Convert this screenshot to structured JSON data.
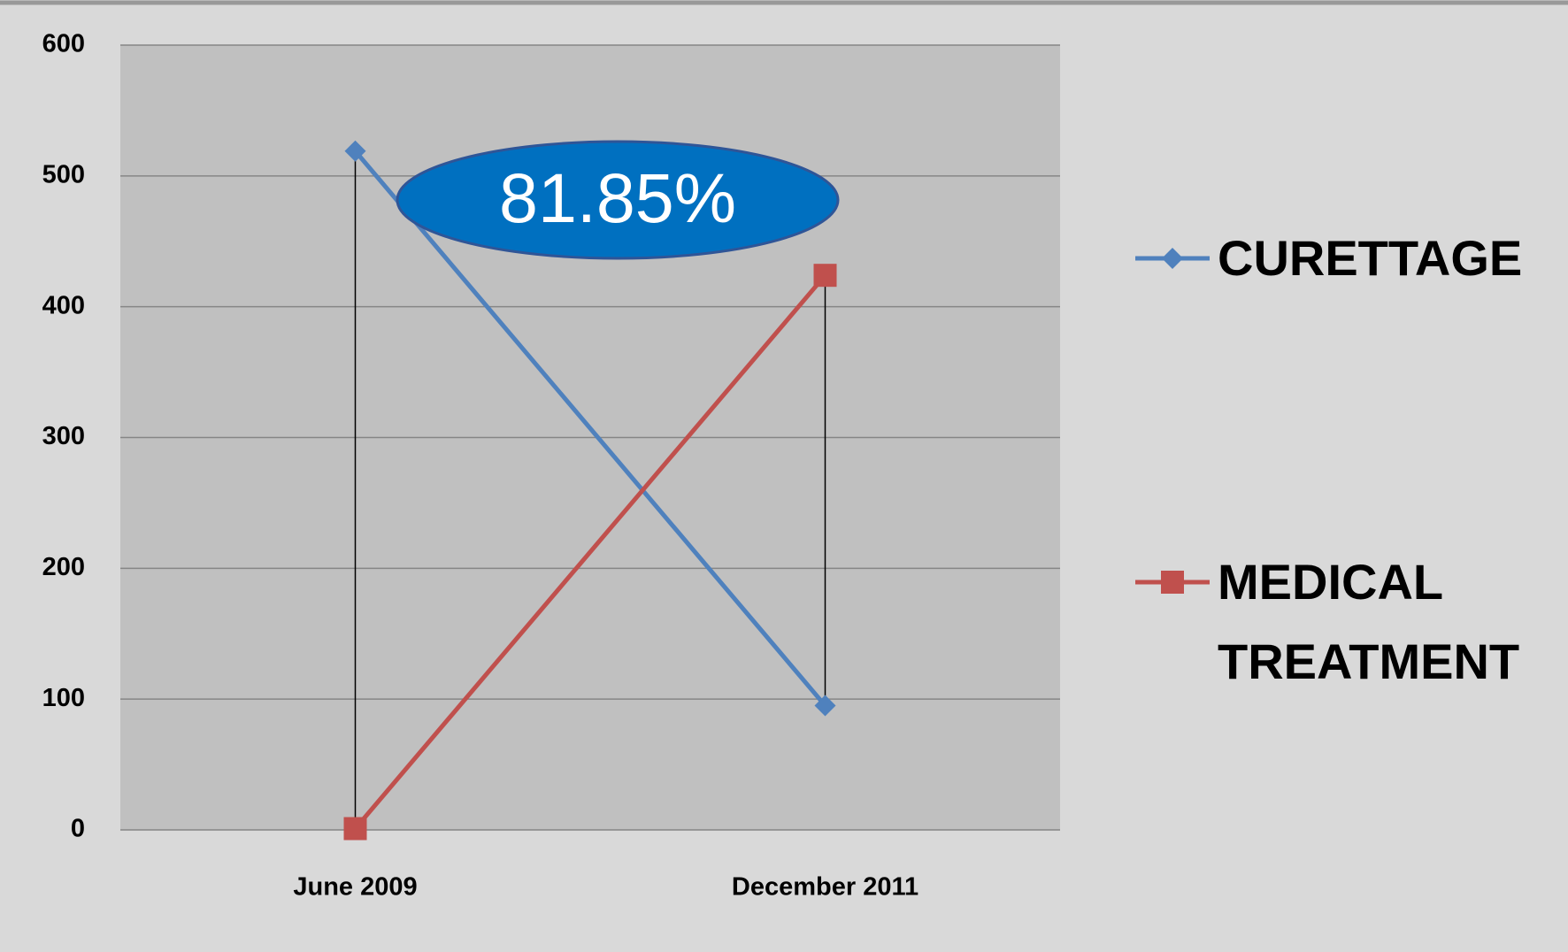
{
  "chart_data": {
    "type": "line",
    "categories": [
      "June 2009",
      "December 2011"
    ],
    "series": [
      {
        "name": "CURETTAGE",
        "color": "#4f81bd",
        "marker": "diamond",
        "values": [
          519,
          95
        ]
      },
      {
        "name": "MEDICAL TREATMENT",
        "color": "#c0504d",
        "marker": "square",
        "values": [
          1,
          424
        ]
      }
    ],
    "ylim": [
      0,
      600
    ],
    "yticks": [
      0,
      100,
      200,
      300,
      400,
      500,
      600
    ],
    "grid": true,
    "high_low_lines": true,
    "legend": "right",
    "annotation": "81.85%"
  }
}
